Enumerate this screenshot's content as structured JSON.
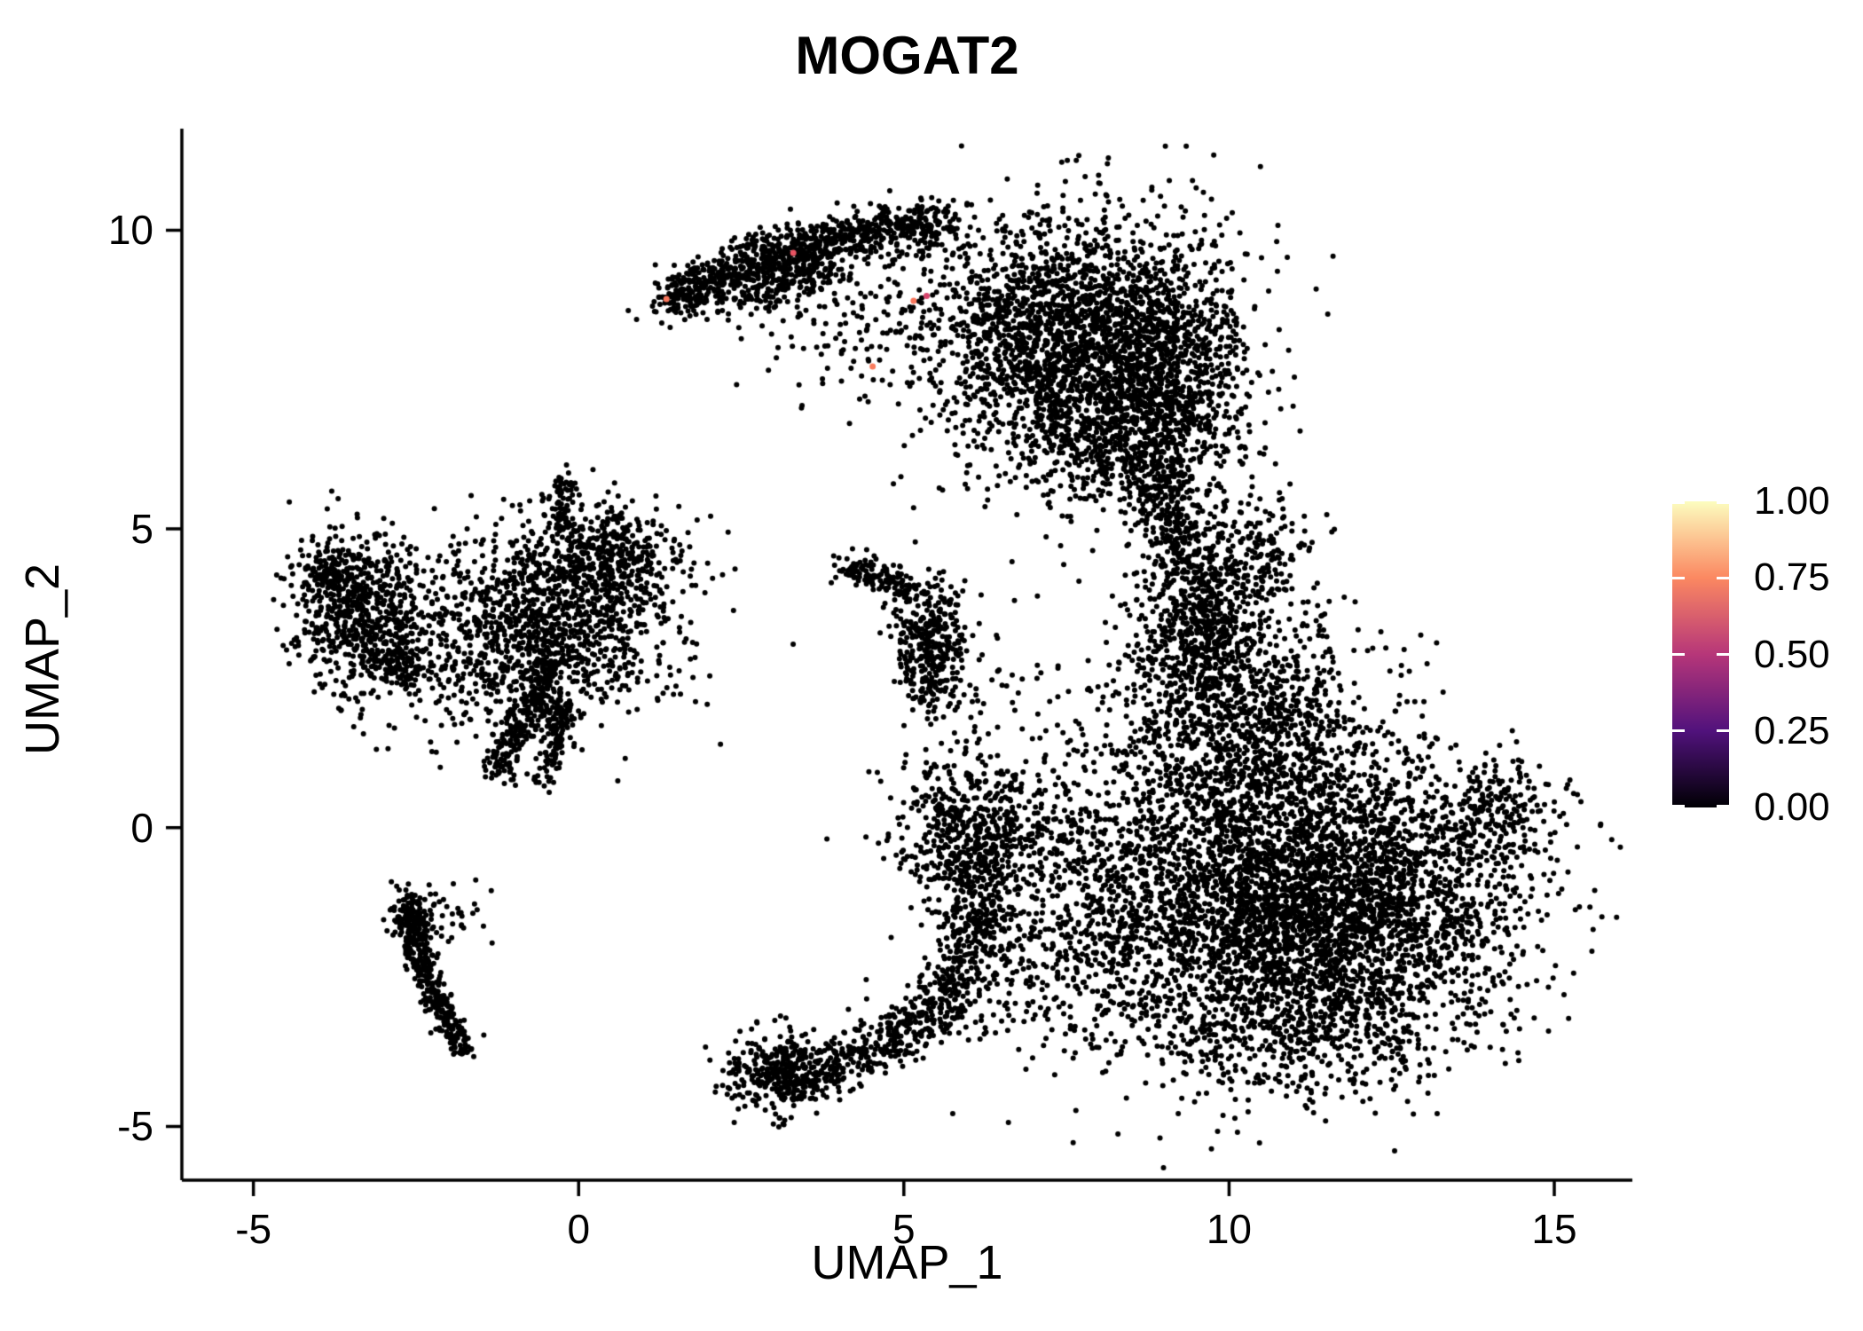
{
  "chart_data": {
    "type": "scatter",
    "title": "MOGAT2",
    "xlabel": "UMAP_1",
    "ylabel": "UMAP_2",
    "xlim": [
      -6.1,
      16.2
    ],
    "ylim": [
      -5.9,
      11.7
    ],
    "grid": false,
    "legend_position": "right",
    "point_color": "#000000",
    "point_radius": 3.0,
    "axes": {
      "x": {
        "ticks": [
          -5,
          0,
          5,
          10,
          15
        ],
        "labels": [
          "-5",
          "0",
          "5",
          "10",
          "15"
        ]
      },
      "y": {
        "ticks": [
          -5,
          0,
          5,
          10
        ],
        "labels": [
          "-5",
          "0",
          "5",
          "10"
        ]
      }
    },
    "legend": {
      "title": "",
      "ticks": [
        1.0,
        0.75,
        0.5,
        0.25,
        0.0
      ],
      "labels": [
        "1.00",
        "0.75",
        "0.50",
        "0.25",
        "0.00"
      ],
      "stops": [
        {
          "v": 0.0,
          "c": "#000004"
        },
        {
          "v": 0.25,
          "c": "#51127C"
        },
        {
          "v": 0.5,
          "c": "#B63679"
        },
        {
          "v": 0.75,
          "c": "#FB8861"
        },
        {
          "v": 1.0,
          "c": "#FCFDBF"
        }
      ]
    },
    "clusters": [
      {
        "id": "top-main",
        "type": "blob",
        "cx": 7.7,
        "cy": 8.2,
        "sx": 1.15,
        "sy": 1.05,
        "n": 2400
      },
      {
        "id": "top-main-lower",
        "type": "blob",
        "cx": 8.4,
        "cy": 6.7,
        "sx": 0.8,
        "sy": 0.7,
        "n": 700
      },
      {
        "id": "top-arc",
        "type": "path",
        "pts": [
          [
            1.35,
            8.8
          ],
          [
            2.1,
            9.25
          ],
          [
            3.0,
            9.6
          ],
          [
            4.0,
            9.85
          ],
          [
            4.9,
            10.0
          ],
          [
            5.7,
            10.15
          ]
        ],
        "jitter": 0.22,
        "n": 900
      },
      {
        "id": "top-arc-inner",
        "type": "path",
        "pts": [
          [
            2.3,
            8.9
          ],
          [
            3.1,
            9.2
          ],
          [
            3.9,
            9.4
          ]
        ],
        "jitter": 0.25,
        "n": 250
      },
      {
        "id": "top-ring-sparse",
        "type": "blob",
        "cx": 4.6,
        "cy": 8.4,
        "sx": 0.9,
        "sy": 0.75,
        "n": 160
      },
      {
        "id": "top-right-edge",
        "type": "blob",
        "cx": 9.3,
        "cy": 7.6,
        "sx": 0.5,
        "sy": 0.9,
        "n": 350
      },
      {
        "id": "neck-upper",
        "type": "path",
        "pts": [
          [
            8.8,
            6.2
          ],
          [
            9.1,
            5.4
          ],
          [
            9.3,
            4.6
          ],
          [
            9.6,
            3.8
          ],
          [
            9.7,
            3.0
          ]
        ],
        "jitter": 0.3,
        "n": 450
      },
      {
        "id": "right-main",
        "type": "blob",
        "cx": 11.3,
        "cy": -1.3,
        "sx": 1.55,
        "sy": 1.25,
        "n": 4200
      },
      {
        "id": "right-upper",
        "type": "blob",
        "cx": 10.3,
        "cy": 1.6,
        "sx": 0.95,
        "sy": 1.0,
        "n": 1000
      },
      {
        "id": "right-upper-left",
        "type": "blob",
        "cx": 9.6,
        "cy": 3.0,
        "sx": 0.65,
        "sy": 0.8,
        "n": 450
      },
      {
        "id": "right-top-branch",
        "type": "blob",
        "cx": 10.3,
        "cy": 4.6,
        "sx": 0.55,
        "sy": 0.55,
        "n": 220
      },
      {
        "id": "right-tip",
        "type": "blob",
        "cx": 14.1,
        "cy": 0.2,
        "sx": 0.4,
        "sy": 0.45,
        "n": 200
      },
      {
        "id": "right-left-sparse",
        "type": "blob",
        "cx": 8.6,
        "cy": -1.2,
        "sx": 0.75,
        "sy": 1.3,
        "n": 450
      },
      {
        "id": "right-bottom",
        "type": "blob",
        "cx": 10.8,
        "cy": -3.6,
        "sx": 1.2,
        "sy": 0.5,
        "n": 300
      },
      {
        "id": "left-far",
        "type": "blob",
        "cx": -3.3,
        "cy": 3.6,
        "sx": 0.5,
        "sy": 0.65,
        "n": 650
      },
      {
        "id": "left-far-ext",
        "type": "path",
        "pts": [
          [
            -3.6,
            4.4
          ],
          [
            -4.0,
            4.2
          ]
        ],
        "jitter": 0.2,
        "n": 120
      },
      {
        "id": "left-far-tail",
        "type": "path",
        "pts": [
          [
            -3.0,
            2.9
          ],
          [
            -2.6,
            2.5
          ]
        ],
        "jitter": 0.18,
        "n": 100
      },
      {
        "id": "left-mid",
        "type": "blob",
        "cx": -0.3,
        "cy": 3.6,
        "sx": 0.95,
        "sy": 0.8,
        "n": 1200
      },
      {
        "id": "left-mid-top",
        "type": "blob",
        "cx": 0.5,
        "cy": 4.6,
        "sx": 0.45,
        "sy": 0.35,
        "n": 250
      },
      {
        "id": "left-mid-string",
        "type": "path",
        "pts": [
          [
            -0.2,
            4.9
          ],
          [
            -0.3,
            5.5
          ],
          [
            -0.1,
            5.85
          ]
        ],
        "jitter": 0.12,
        "n": 70
      },
      {
        "id": "left-strings",
        "type": "path",
        "pts": [
          [
            -1.25,
            0.95
          ],
          [
            -0.95,
            1.6
          ],
          [
            -0.6,
            2.3
          ],
          [
            -0.35,
            2.9
          ]
        ],
        "jitter": 0.14,
        "n": 280
      },
      {
        "id": "left-string2",
        "type": "path",
        "pts": [
          [
            -0.5,
            0.85
          ],
          [
            -0.35,
            1.5
          ],
          [
            -0.2,
            2.1
          ]
        ],
        "jitter": 0.12,
        "n": 140
      },
      {
        "id": "left-sparse",
        "type": "blob",
        "cx": -1.7,
        "cy": 2.8,
        "sx": 0.7,
        "sy": 0.8,
        "n": 180
      },
      {
        "id": "streak",
        "type": "path",
        "pts": [
          [
            -2.62,
            -1.25
          ],
          [
            -2.55,
            -1.9
          ],
          [
            -2.35,
            -2.5
          ],
          [
            -2.1,
            -3.0
          ],
          [
            -1.9,
            -3.45
          ],
          [
            -1.75,
            -3.8
          ]
        ],
        "jitter": 0.11,
        "n": 330
      },
      {
        "id": "streak-head",
        "type": "blob",
        "cx": -2.55,
        "cy": -1.5,
        "sx": 0.18,
        "sy": 0.3,
        "n": 90
      },
      {
        "id": "streak-sparse",
        "type": "blob",
        "cx": -2.0,
        "cy": -1.6,
        "sx": 0.35,
        "sy": 0.35,
        "n": 40
      },
      {
        "id": "mid-small",
        "type": "blob",
        "cx": 5.35,
        "cy": 3.15,
        "sx": 0.3,
        "sy": 0.5,
        "n": 320
      },
      {
        "id": "mid-small-tail",
        "type": "path",
        "pts": [
          [
            5.15,
            3.95
          ],
          [
            4.6,
            4.2
          ],
          [
            4.05,
            4.35
          ]
        ],
        "jitter": 0.13,
        "n": 130
      },
      {
        "id": "mid-small-below",
        "type": "blob",
        "cx": 5.6,
        "cy": 2.2,
        "sx": 0.3,
        "sy": 0.3,
        "n": 40
      },
      {
        "id": "bottom-blob",
        "type": "blob",
        "cx": 3.05,
        "cy": -4.1,
        "sx": 0.38,
        "sy": 0.33,
        "n": 330
      },
      {
        "id": "bottom-band",
        "type": "path",
        "pts": [
          [
            3.45,
            -4.15
          ],
          [
            4.2,
            -3.85
          ],
          [
            4.95,
            -3.45
          ],
          [
            5.55,
            -3.0
          ]
        ],
        "jitter": 0.26,
        "n": 380
      },
      {
        "id": "bottom-rise",
        "type": "path",
        "pts": [
          [
            5.65,
            -2.85
          ],
          [
            5.95,
            -2.2
          ],
          [
            6.15,
            -1.6
          ],
          [
            6.25,
            -1.05
          ]
        ],
        "jitter": 0.3,
        "n": 320
      },
      {
        "id": "mid-blob",
        "type": "blob",
        "cx": 6.0,
        "cy": -0.15,
        "sx": 0.5,
        "sy": 0.6,
        "n": 500
      },
      {
        "id": "mid-blob-sparse",
        "type": "blob",
        "cx": 7.2,
        "cy": -0.3,
        "sx": 0.9,
        "sy": 1.1,
        "n": 260
      },
      {
        "id": "between-sparse",
        "type": "blob",
        "cx": 7.2,
        "cy": -2.2,
        "sx": 0.9,
        "sy": 0.8,
        "n": 220
      },
      {
        "id": "misc-sparse",
        "type": "blob",
        "cx": 6.6,
        "cy": 1.8,
        "sx": 1.0,
        "sy": 1.2,
        "n": 90
      }
    ],
    "highlighted_points": [
      {
        "x": 1.35,
        "y": 8.85,
        "value": 0.75,
        "color": "#F8765C"
      },
      {
        "x": 3.3,
        "y": 9.62,
        "value": 0.65,
        "color": "#E85362"
      },
      {
        "x": 5.15,
        "y": 8.82,
        "value": 0.75,
        "color": "#F8765C"
      },
      {
        "x": 4.52,
        "y": 7.72,
        "value": 0.7,
        "color": "#F97C5D"
      },
      {
        "x": 5.35,
        "y": 8.9,
        "value": 0.55,
        "color": "#D6456C"
      }
    ]
  }
}
